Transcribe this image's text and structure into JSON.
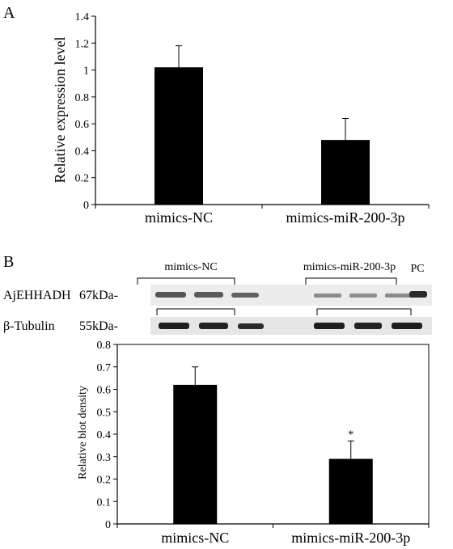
{
  "panels": {
    "a": {
      "letter": "A"
    },
    "b": {
      "letter": "B"
    }
  },
  "blot": {
    "group_nc": "mimics-NC",
    "group_mir": "mimics-miR-200-3p",
    "pc_label": "PC",
    "row1_protein": "AjEHHADH",
    "row1_size": "67kDa-",
    "row2_protein": "β-Tubulin",
    "row2_size": "55kDa-"
  },
  "chart_data": [
    {
      "type": "bar",
      "panel": "A",
      "categories": [
        "mimics-NC",
        "mimics-miR-200-3p"
      ],
      "values": [
        1.02,
        0.48
      ],
      "errors": [
        0.16,
        0.16
      ],
      "title": "",
      "xlabel": "",
      "ylabel": "Relative expression level",
      "ylim": [
        0,
        1.4
      ],
      "yticks": [
        0,
        0.2,
        0.4,
        0.6,
        0.8,
        1,
        1.2,
        1.4
      ],
      "bar_color": "#000000",
      "grid": false
    },
    {
      "type": "bar",
      "panel": "B",
      "categories": [
        "mimics-NC",
        "mimics-miR-200-3p"
      ],
      "values": [
        0.62,
        0.29
      ],
      "errors": [
        0.08,
        0.08
      ],
      "annotations": [
        "",
        "*"
      ],
      "title": "",
      "xlabel": "",
      "ylabel": "Relative blot density",
      "ylim": [
        0,
        0.8
      ],
      "yticks": [
        0,
        0.1,
        0.2,
        0.3,
        0.4,
        0.5,
        0.6,
        0.7,
        0.8
      ],
      "bar_color": "#000000",
      "grid": false
    }
  ]
}
